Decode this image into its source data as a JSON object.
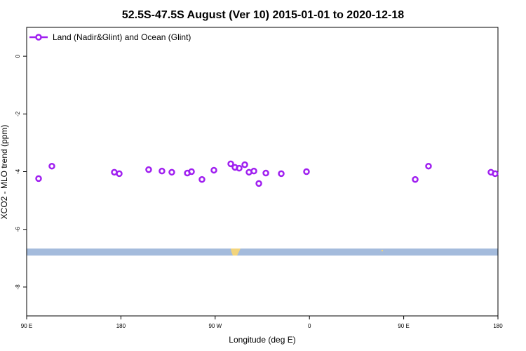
{
  "chart_data": {
    "type": "scatter",
    "title": "52.5S-47.5S August (Ver 10)   2015-01-01 to 2020-12-18",
    "xlabel": "Longitude (deg E)",
    "ylabel": "XCO2 - MLO trend (ppm)",
    "xlim": [
      90,
      540
    ],
    "ylim": [
      -9,
      1
    ],
    "xticks": [
      {
        "value": 90,
        "label": "90 E"
      },
      180,
      {
        "value": 270,
        "label": "90 W"
      },
      {
        "value": 360,
        "label": "0"
      },
      {
        "value": 450,
        "label": "90 E"
      },
      {
        "value": 540,
        "label": "180"
      }
    ],
    "yticks": [
      0,
      -2,
      -4,
      -6,
      -8
    ],
    "legend": "upper left",
    "series": [
      {
        "name": "Land (Nadir&Glint) and Ocean (Glint)",
        "color": "#a020f0",
        "x": [
          101.4,
          114.1,
          173.7,
          178.4,
          206.5,
          219.2,
          228.6,
          243.4,
          247.4,
          257.4,
          268.8,
          284.9,
          288.9,
          292.9,
          298.3,
          302.3,
          307.0,
          311.7,
          318.4,
          333.1,
          357.2,
          461.0,
          473.7,
          533.3,
          537.3
        ],
        "values": [
          -4.24,
          -3.81,
          -4.02,
          -4.07,
          -3.93,
          -3.98,
          -4.02,
          -4.05,
          -4.0,
          -4.27,
          -3.95,
          -3.73,
          -3.85,
          -3.88,
          -3.76,
          -4.02,
          -3.98,
          -4.41,
          -4.05,
          -4.07,
          -4.0,
          -4.27,
          -3.81,
          -4.02,
          -4.07
        ]
      }
    ]
  }
}
